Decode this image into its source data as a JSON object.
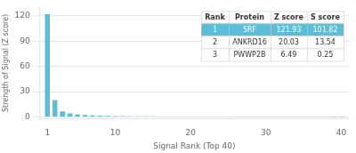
{
  "chart_data": {
    "type": "bar",
    "x_label": "Signal Rank (Top 40)",
    "y_label": "Strength of Signal (Z score)",
    "x": [
      1,
      2,
      3,
      4,
      5,
      6,
      7,
      8,
      9,
      10,
      11,
      12,
      13,
      14,
      15,
      16,
      17,
      18,
      19,
      20,
      21,
      22,
      23,
      24,
      25,
      26,
      27,
      28,
      29,
      30,
      31,
      32,
      33,
      34,
      35,
      36,
      37,
      38,
      39,
      40
    ],
    "values": [
      121.93,
      20.03,
      6.49,
      4.2,
      3.0,
      2.3,
      1.9,
      1.6,
      1.35,
      1.15,
      0.95,
      0.88,
      0.8,
      0.75,
      0.7,
      0.65,
      0.6,
      0.57,
      0.54,
      0.51,
      0.49,
      0.47,
      0.45,
      0.43,
      0.41,
      0.39,
      0.37,
      0.35,
      0.33,
      0.31,
      0.29,
      0.27,
      0.25,
      0.23,
      0.21,
      0.19,
      0.17,
      0.15,
      0.13,
      0.11
    ],
    "color": "#5bbdd6",
    "xlim": [
      0,
      41
    ],
    "xticks": [
      1,
      10,
      20,
      30,
      40
    ],
    "ylim": [
      -2,
      130
    ],
    "yticks": [
      0,
      30,
      60,
      90,
      120
    ],
    "grid": true,
    "table": {
      "headers": [
        "Rank",
        "Protein",
        "Z score",
        "S score"
      ],
      "rows": [
        [
          "1",
          "SRF",
          "121.93",
          "101.82"
        ],
        [
          "2",
          "ANKRD16",
          "20.03",
          "13.54"
        ],
        [
          "3",
          "PWWP2B",
          "6.49",
          "0.25"
        ]
      ]
    }
  }
}
